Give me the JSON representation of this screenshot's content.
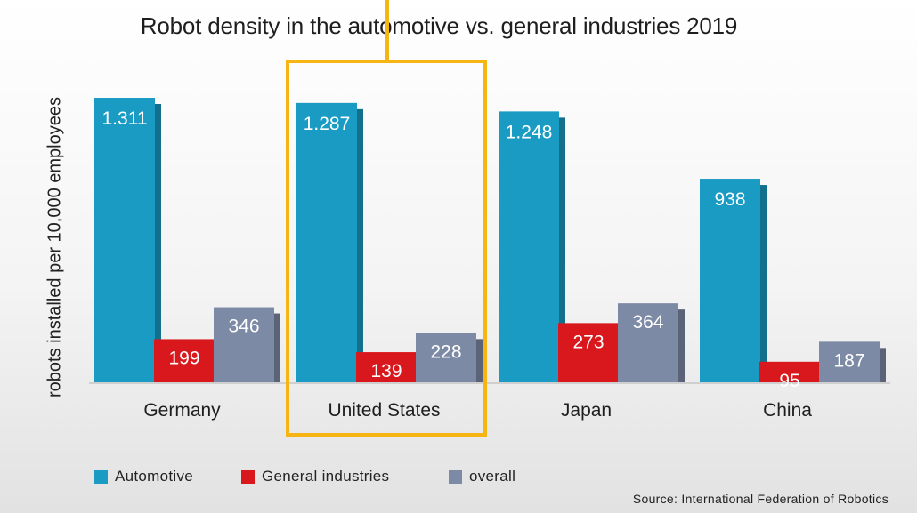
{
  "chart_data": {
    "type": "bar",
    "title": "Robot density in the automotive vs. general industries 2019",
    "ylabel": "robots installed per 10,000 employees",
    "xlabel": "",
    "categories": [
      "Germany",
      "United States",
      "Japan",
      "China"
    ],
    "series": [
      {
        "name": "Automotive",
        "color": "#1a9bc4",
        "values": [
          1311,
          1287,
          1248,
          938
        ],
        "labels": [
          "1.311",
          "1.287",
          "1.248",
          "938"
        ]
      },
      {
        "name": "General industries",
        "color": "#d8181c",
        "values": [
          199,
          139,
          273,
          95
        ],
        "labels": [
          "199",
          "139",
          "273",
          "95"
        ]
      },
      {
        "name": "overall",
        "color": "#7d8aa6",
        "values": [
          346,
          228,
          364,
          187
        ],
        "labels": [
          "346",
          "228",
          "364",
          "187"
        ]
      }
    ],
    "ylim": [
      0,
      1311
    ],
    "grid": false,
    "legend_position": "bottom-left",
    "source": "Source: International Federation of Robotics",
    "highlight": {
      "category": "United States",
      "color": "#f7b514"
    }
  }
}
